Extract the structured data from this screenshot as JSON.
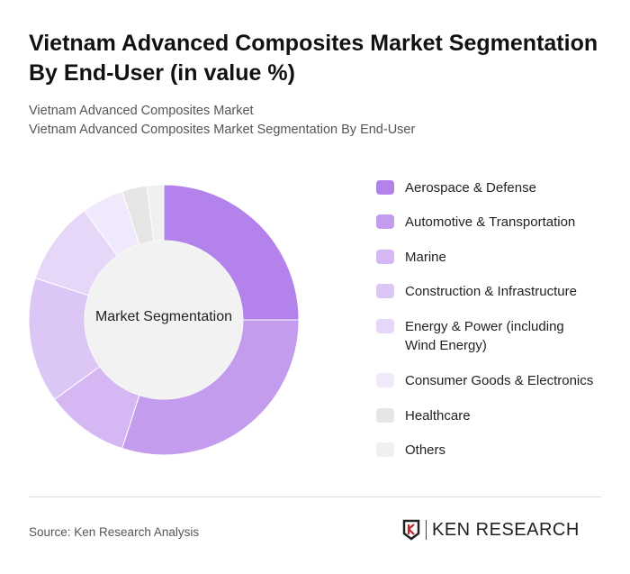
{
  "title": "Vietnam Advanced Composites Market Segmentation By End-User (in value %)",
  "subtitle1": "Vietnam Advanced Composites Market",
  "subtitle2": "Vietnam Advanced Composites Market Segmentation By End-User",
  "source": "Source: Ken Research Analysis",
  "logo": "KEN RESEARCH",
  "chart_data": {
    "type": "pie",
    "variant": "donut",
    "center_label": "Market Segmentation",
    "categories": [
      "Aerospace & Defense",
      "Automotive & Transportation",
      "Marine",
      "Construction & Infrastructure",
      "Energy & Power (including Wind Energy)",
      "Consumer Goods & Electronics",
      "Healthcare",
      "Others"
    ],
    "values": [
      25,
      30,
      10,
      15,
      10,
      5,
      3,
      2
    ],
    "colors": [
      "#b382ea",
      "#c39cee",
      "#d4b7f3",
      "#dcc6f5",
      "#e6d6f8",
      "#f0e8fb",
      "#e6e6e6",
      "#f0f0f0"
    ],
    "legend_position": "right"
  }
}
